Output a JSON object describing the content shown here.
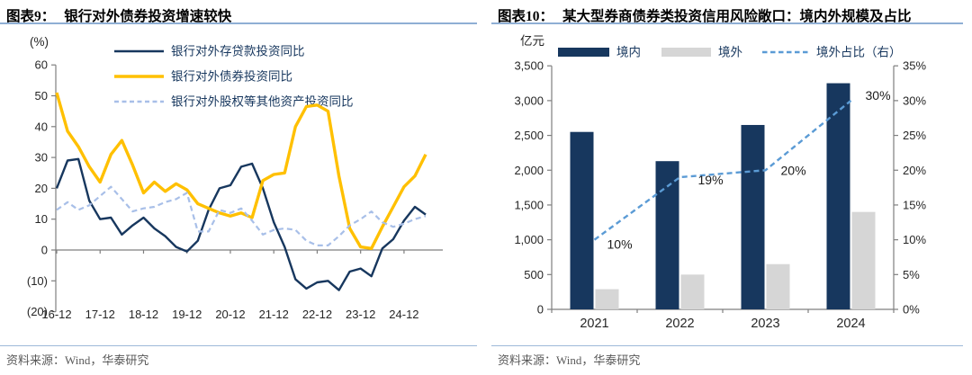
{
  "panels": [
    {
      "tag": "图表9：",
      "title": "银行对外债券投资增速较快",
      "source": "资料来源：Wind，华泰研究"
    },
    {
      "tag": "图表10：",
      "title": "某大型券商债券类投资信用风险敞口：境内外规模及占比",
      "source": "资料来源：Wind，华泰研究"
    }
  ],
  "colors": {
    "navy": "#17375E",
    "yellow": "#FFC000",
    "light_dashed_blue": "#A8BFE8",
    "steel_dashed_blue": "#5B9BD5",
    "bar_gray": "#D6D6D6",
    "rule_blue": "#8FAFD4",
    "axis_gray": "#7f7f7f",
    "source_gray": "#595959"
  },
  "chart_data": [
    {
      "id": "bank-foreign-investment-growth",
      "type": "line",
      "title": "银行对外债券投资增速较快",
      "unit": "(%)",
      "x": [
        "16-12",
        "17-03",
        "17-06",
        "17-09",
        "17-12",
        "18-03",
        "18-06",
        "18-09",
        "18-12",
        "19-03",
        "19-06",
        "19-09",
        "19-12",
        "20-03",
        "20-06",
        "20-09",
        "20-12",
        "21-03",
        "21-06",
        "21-09",
        "21-12",
        "22-03",
        "22-06",
        "22-09",
        "22-12",
        "23-03",
        "23-06",
        "23-09",
        "23-12",
        "24-03",
        "24-06",
        "24-09",
        "24-12",
        "25-03",
        "25-06"
      ],
      "x_tick_labels": [
        "16-12",
        "17-12",
        "18-12",
        "19-12",
        "20-12",
        "21-12",
        "22-12",
        "23-12",
        "24-12"
      ],
      "ylim": [
        -20,
        60
      ],
      "y_ticks": [
        60,
        50,
        40,
        30,
        20,
        10,
        0,
        -10,
        -20
      ],
      "y_tick_labels": [
        "60",
        "50",
        "40",
        "30",
        "20",
        "10",
        "0",
        "(10)",
        "(20)"
      ],
      "grid": false,
      "legend_position": "top-left",
      "series": [
        {
          "key": "deposit-loan",
          "name": "银行对外存贷款投资同比",
          "color": "#17375E",
          "dash": "",
          "values": [
            20,
            29,
            29.5,
            16,
            10,
            10.5,
            5,
            8,
            10.5,
            7,
            4.5,
            1,
            -0.5,
            3,
            13,
            20,
            21,
            27,
            28,
            20,
            9,
            1,
            -9.5,
            -12.5,
            -10.5,
            -10,
            -13,
            -7,
            -6,
            -8.5,
            0.5,
            3.5,
            9.5,
            14,
            11.5
          ]
        },
        {
          "key": "bond",
          "name": "银行对外债券投资同比",
          "color": "#FFC000",
          "dash": "",
          "values": [
            51,
            38.5,
            33.5,
            27,
            22,
            31,
            35.5,
            27.5,
            18.5,
            22,
            19,
            21.5,
            19.5,
            15,
            13.5,
            12,
            11,
            12,
            10.5,
            22.5,
            24.5,
            25,
            40,
            46.5,
            47,
            45,
            24,
            7,
            1,
            0.5,
            7.5,
            14,
            20.5,
            24,
            31
          ]
        },
        {
          "key": "equity-other",
          "name": "银行对外股权等其他资产投资同比",
          "color": "#A8BFE8",
          "dash": "6,4",
          "values": [
            13,
            15.5,
            13,
            14.5,
            17.5,
            20.5,
            16.5,
            12.5,
            13.5,
            14,
            15.5,
            16.5,
            18.5,
            6,
            6,
            13,
            12,
            13.5,
            9.5,
            5,
            6.5,
            7,
            6.5,
            3,
            1.5,
            1.5,
            4.5,
            8,
            10,
            12.5,
            9,
            7.5,
            8.5,
            10,
            11
          ]
        }
      ]
    },
    {
      "id": "broker-bond-credit-exposure",
      "type": "bar",
      "title": "某大型券商债券类投资信用风险敞口：境内外规模及占比",
      "categories": [
        "2021",
        "2022",
        "2023",
        "2024"
      ],
      "left_axis": {
        "unit": "亿元",
        "min": 0,
        "max": 3500,
        "step": 500,
        "tick_values": [
          3500,
          3000,
          2500,
          2000,
          1500,
          1000,
          500,
          0
        ],
        "tick_labels": [
          "3,500",
          "3,000",
          "2,500",
          "2,000",
          "1,500",
          "1,000",
          "500",
          "0"
        ]
      },
      "right_axis": {
        "min": 0,
        "max": 35,
        "step": 5,
        "tick_values": [
          35,
          30,
          25,
          20,
          15,
          10,
          5,
          0
        ],
        "tick_labels": [
          "35%",
          "30%",
          "25%",
          "20%",
          "15%",
          "10%",
          "5%",
          "0%"
        ]
      },
      "series": [
        {
          "key": "domestic",
          "name": "境内",
          "type": "bar",
          "color": "#17375E",
          "values": [
            2550,
            2130,
            2650,
            3250
          ]
        },
        {
          "key": "overseas",
          "name": "境外",
          "type": "bar",
          "color": "#D6D6D6",
          "values": [
            290,
            500,
            650,
            1400
          ]
        },
        {
          "key": "overseas-share",
          "name": "境外占比（右）",
          "type": "line",
          "axis": "right",
          "color": "#5B9BD5",
          "dash": "6,4",
          "values": [
            10,
            19,
            20,
            30
          ],
          "point_labels": [
            "10%",
            "19%",
            "20%",
            "30%"
          ]
        }
      ]
    }
  ]
}
